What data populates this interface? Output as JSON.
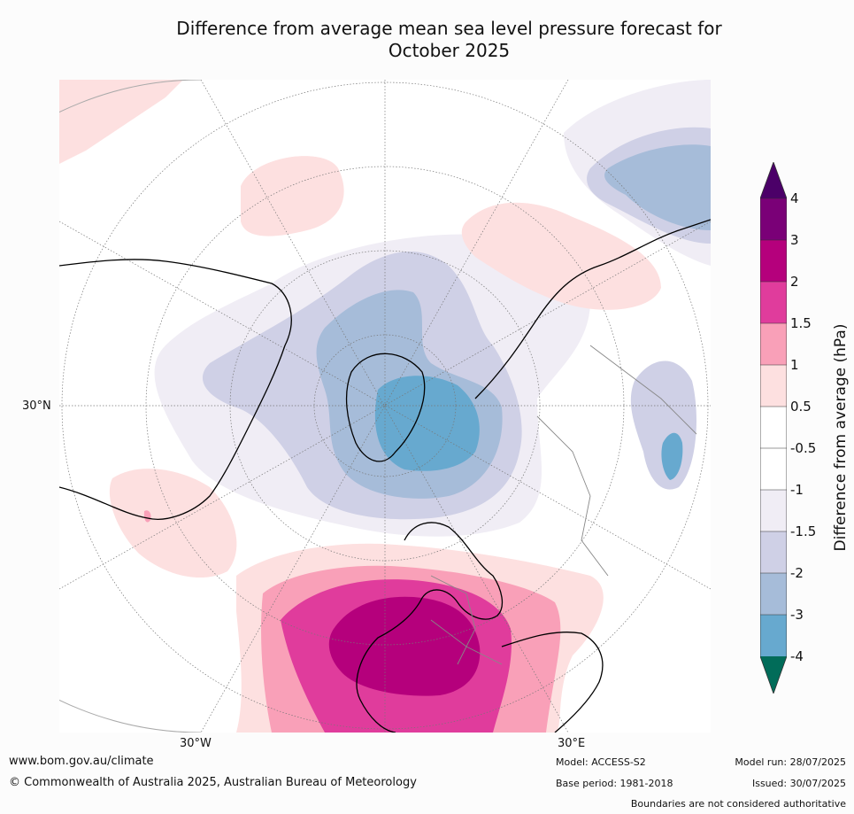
{
  "title": {
    "line1": "Difference from average mean sea level pressure forecast for",
    "line2": "October 2025"
  },
  "map": {
    "lat_label_left": "30°N",
    "lon_label_bottom_left": "30°W",
    "lon_label_bottom_right": "30°E",
    "colors": {
      "pos_05_1": "#fde0e0",
      "pos_1_15": "#f9a0b8",
      "pos_15_2": "#e03c9c",
      "pos_2_3": "#b5007c",
      "pos_3_4": "#7a0077",
      "pos_over4": "#4b0068",
      "neutral": "#ffffff",
      "neg_05_1": "#f0edf5",
      "neg_1_15": "#cfd0e6",
      "neg_15_2": "#a6bcd9",
      "neg_2_3": "#67a9cf",
      "neg_3_4": "#1c9099",
      "neg_under4": "#016c59"
    }
  },
  "colorbar": {
    "label": "Difference from average (hPa)",
    "ticks": [
      "4",
      "3",
      "2",
      "1.5",
      "1",
      "0.5",
      "-0.5",
      "-1",
      "-1.5",
      "-2",
      "-3",
      "-4"
    ]
  },
  "footer": {
    "url": "www.bom.gov.au/climate",
    "copyright": "© Commonwealth of Australia 2025, Australian Bureau of Meteorology",
    "model": "Model: ACCESS-S2",
    "base_period": "Base period: 1981-2018",
    "model_run": "Model run: 28/07/2025",
    "issued": "Issued: 30/07/2025",
    "disclaimer": "Boundaries are not considered authoritative"
  }
}
